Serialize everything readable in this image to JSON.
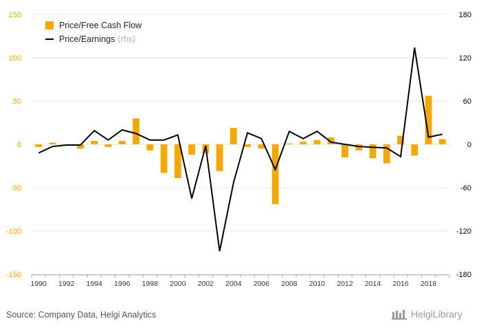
{
  "chart_data": {
    "type": "bar+line",
    "title": "",
    "xlabel": "",
    "ylabel": "",
    "x": [
      1990,
      1991,
      1992,
      1993,
      1994,
      1995,
      1996,
      1997,
      1998,
      1999,
      2000,
      2001,
      2002,
      2003,
      2004,
      2005,
      2006,
      2007,
      2008,
      2009,
      2010,
      2011,
      2012,
      2013,
      2014,
      2015,
      2016,
      2017,
      2018,
      2019
    ],
    "x_tick_labels": [
      "1990",
      "1992",
      "1994",
      "1996",
      "1998",
      "2000",
      "2002",
      "2004",
      "2006",
      "2008",
      "2010",
      "2012",
      "2014",
      "2016",
      "2018"
    ],
    "series": [
      {
        "name": "Price/Free Cash Flow",
        "axis_note": "",
        "type": "bar",
        "axis": "left",
        "color": "#f5a800",
        "values": [
          -3,
          2,
          -1,
          -5,
          4,
          -3,
          4,
          30,
          -7,
          -33,
          -39,
          -12,
          -10,
          -31,
          19,
          -3,
          -5,
          -69,
          1,
          3,
          5,
          8,
          -15,
          -7,
          -16,
          -22,
          10,
          -13,
          56,
          6
        ]
      },
      {
        "name": "Price/Earnings",
        "axis_note": "(rhs)",
        "type": "line",
        "axis": "right",
        "color": "#000000",
        "values": [
          -12,
          -3,
          -1,
          -1,
          19,
          6,
          20,
          15,
          6,
          6,
          13,
          -75,
          -2,
          -148,
          -53,
          16,
          8,
          -35,
          18,
          8,
          18,
          3,
          0,
          -3,
          -4,
          -5,
          -17,
          134,
          10,
          14
        ]
      }
    ],
    "y_left": {
      "ylim": [
        -150,
        150
      ],
      "ticks": [
        "150",
        "100",
        "50",
        "0",
        "-50",
        "-100",
        "-150"
      ],
      "tick_values": [
        150,
        100,
        50,
        0,
        -50,
        -100,
        -150
      ],
      "tick_color": "#f5a800"
    },
    "y_right": {
      "ylim": [
        -180,
        180
      ],
      "ticks": [
        "180",
        "120",
        "60",
        "0",
        "-60",
        "-120",
        "-180"
      ],
      "tick_values": [
        180,
        120,
        60,
        0,
        -60,
        -120,
        -180
      ]
    },
    "grid": true,
    "legend_position": "top-left"
  },
  "footer": {
    "source": "Source: Company Data, Helgi Analytics",
    "brand": "HelgiLibrary"
  },
  "colors": {
    "grid": "#e6e6e6",
    "axis": "#aaaaaa",
    "brand": "#9a9a9a"
  }
}
